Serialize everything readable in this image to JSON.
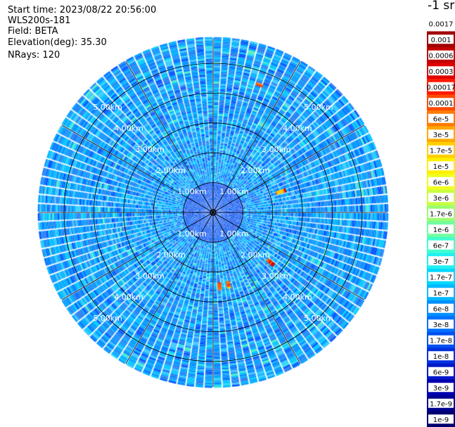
{
  "header": {
    "start_time": "Start time: 2023/08/22 20:56:00",
    "instrument": "WLS200s-181",
    "field": "Field: BETA",
    "elevation": "Elevation(deg): 35.30",
    "nrays": "NRays: 120"
  },
  "colorbar": {
    "unit_label": "-1 sr",
    "labels": [
      "0.0017",
      "0.001",
      "0.0006",
      "0.0003",
      "0.00017",
      "0.0001",
      "6e-5",
      "3e-5",
      "1.7e-5",
      "1e-5",
      "6e-6",
      "3e-6",
      "1.7e-6",
      "1e-6",
      "6e-7",
      "3e-7",
      "1.7e-7",
      "1e-7",
      "6e-8",
      "3e-8",
      "1.7e-8",
      "1e-8",
      "6e-9",
      "3e-9",
      "1.7e-9",
      "1e-9"
    ],
    "colors": [
      "#ffffff",
      "#a00000",
      "#c40000",
      "#e00000",
      "#ff1a00",
      "#ff4a00",
      "#ff7a00",
      "#ffa800",
      "#ffd000",
      "#fff000",
      "#f0ff20",
      "#c8ff40",
      "#9aff70",
      "#70ffa0",
      "#40ffd0",
      "#20f0f0",
      "#00d8ff",
      "#00b8ff",
      "#0090ff",
      "#0070ff",
      "#0050f0",
      "#0030e0",
      "#0018c8",
      "#0000b0",
      "#000090",
      "#000070"
    ]
  },
  "chart_data": {
    "type": "heatmap",
    "projection": "polar PPI",
    "n_rays": 120,
    "range_rings_km": [
      1,
      2,
      3,
      4,
      5
    ],
    "ring_labels": [
      "1.00km",
      "2.00km",
      "3.00km",
      "4.00km",
      "5.00km"
    ],
    "max_range_km": 5.85,
    "typical_beta_sr": "1e-7 to 3e-8",
    "hotspots": [
      {
        "azimuth_deg": 20,
        "range_km_start": 4.5,
        "range_km_end": 4.6,
        "beta": "3e-5"
      },
      {
        "azimuth_deg": 73,
        "range_km_start": 2.2,
        "range_km_end": 2.5,
        "beta": "1e-4"
      },
      {
        "azimuth_deg": 131,
        "range_km_start": 2.4,
        "range_km_end": 2.65,
        "beta": "6e-5"
      },
      {
        "azimuth_deg": 168,
        "range_km_start": 2.35,
        "range_km_end": 2.55,
        "beta": "1e-4"
      },
      {
        "azimuth_deg": 175,
        "range_km_start": 2.35,
        "range_km_end": 2.55,
        "beta": "1e-4"
      }
    ]
  }
}
